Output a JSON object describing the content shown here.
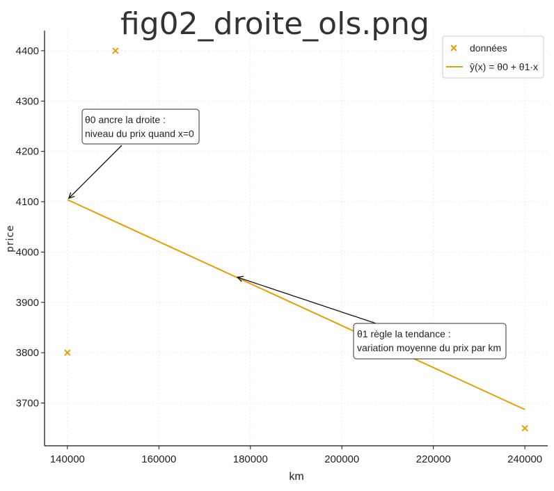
{
  "chart_data": {
    "type": "scatter",
    "title": "fig02_droite_ols.png",
    "xlabel": "km",
    "ylabel": "price",
    "xlim": [
      135000,
      245000
    ],
    "ylim": [
      3615,
      4440
    ],
    "x_ticks": [
      140000,
      160000,
      180000,
      200000,
      220000,
      240000
    ],
    "y_ticks": [
      3700,
      3800,
      3900,
      4000,
      4100,
      4200,
      4300,
      4400
    ],
    "grid": true,
    "legend_position": "top-right",
    "series": [
      {
        "name": "données",
        "kind": "scatter",
        "marker": "x",
        "color": "#E69F00",
        "points": [
          [
            140000,
            3800
          ],
          [
            150500,
            4400
          ],
          [
            240000,
            3650
          ]
        ]
      },
      {
        "name": "ŷ(x) = θ0 + θ1·x",
        "kind": "line",
        "color": "#E69F00",
        "points": [
          [
            140000,
            4104
          ],
          [
            240000,
            3687
          ]
        ]
      }
    ],
    "annotations": [
      {
        "lines": [
          "θ0 ancre la droite :",
          "niveau du prix quand x=0"
        ],
        "point": [
          140000,
          4104
        ]
      },
      {
        "lines": [
          "θ1 règle la tendance :",
          "variation moyenne du prix par km"
        ],
        "point": [
          177000,
          3950
        ]
      }
    ]
  }
}
